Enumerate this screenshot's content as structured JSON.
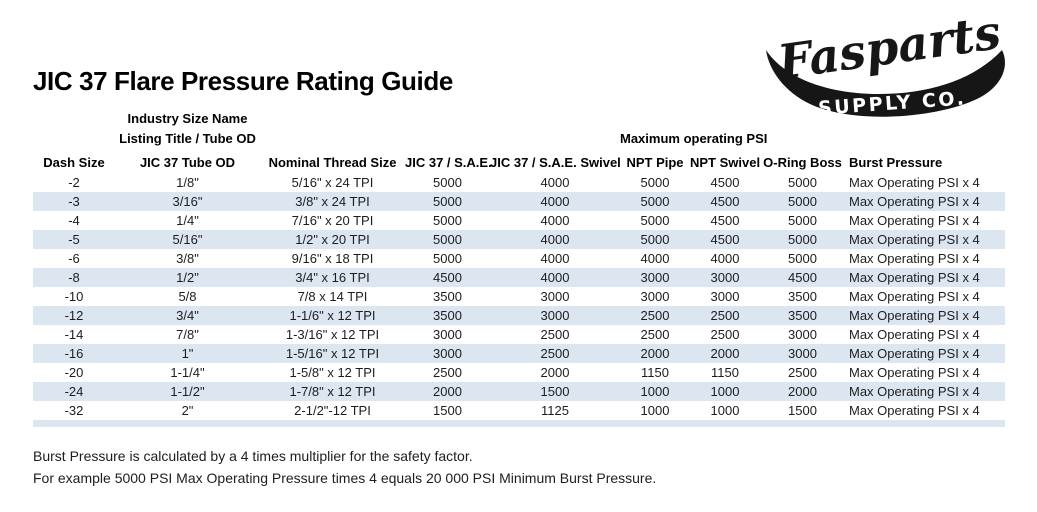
{
  "page": {
    "title": "JIC 37 Flare Pressure Rating Guide"
  },
  "logo": {
    "brand": "Fasparts",
    "subtitle": "SUPPLY CO.",
    "color": "#161616"
  },
  "table": {
    "group_headers": {
      "industry_size_name": "Industry Size Name",
      "listing_title": "Listing Title / Tube OD",
      "max_operating_psi": "Maximum operating PSI"
    },
    "columns": [
      "Dash Size",
      "JIC 37 Tube OD",
      "Nominal Thread Size",
      "JIC 37 / S.A.E.",
      "JIC 37 / S.A.E. Swivel",
      "NPT Pipe",
      "NPT Swivel",
      "O-Ring Boss",
      "Burst Pressure"
    ],
    "rows": [
      [
        "-2",
        "1/8\"",
        "5/16\" x 24 TPI",
        "5000",
        "4000",
        "5000",
        "4500",
        "5000",
        "Max Operating PSI x 4"
      ],
      [
        "-3",
        "3/16\"",
        "3/8\" x 24 TPI",
        "5000",
        "4000",
        "5000",
        "4500",
        "5000",
        "Max Operating PSI x 4"
      ],
      [
        "-4",
        "1/4\"",
        "7/16\" x 20 TPI",
        "5000",
        "4000",
        "5000",
        "4500",
        "5000",
        "Max Operating PSI x 4"
      ],
      [
        "-5",
        "5/16\"",
        "1/2\" x 20 TPI",
        "5000",
        "4000",
        "5000",
        "4500",
        "5000",
        "Max Operating PSI x 4"
      ],
      [
        "-6",
        "3/8\"",
        "9/16\" x 18 TPI",
        "5000",
        "4000",
        "4000",
        "4000",
        "5000",
        "Max Operating PSI x 4"
      ],
      [
        "-8",
        "1/2\"",
        "3/4\" x 16 TPI",
        "4500",
        "4000",
        "3000",
        "3000",
        "4500",
        "Max Operating PSI x 4"
      ],
      [
        "-10",
        "5/8",
        "7/8 x 14 TPI",
        "3500",
        "3000",
        "3000",
        "3000",
        "3500",
        "Max Operating PSI x 4"
      ],
      [
        "-12",
        "3/4\"",
        "1-1/6\" x 12 TPI",
        "3500",
        "3000",
        "2500",
        "2500",
        "3500",
        "Max Operating PSI x 4"
      ],
      [
        "-14",
        "7/8\"",
        "1-3/16\" x 12 TPI",
        "3000",
        "2500",
        "2500",
        "2500",
        "3000",
        "Max Operating PSI x 4"
      ],
      [
        "-16",
        "1\"",
        "1-5/16\" x 12 TPI",
        "3000",
        "2500",
        "2000",
        "2000",
        "3000",
        "Max Operating PSI x 4"
      ],
      [
        "-20",
        "1-1/4\"",
        "1-5/8\" x 12 TPI",
        "2500",
        "2000",
        "1150",
        "1150",
        "2500",
        "Max Operating PSI x 4"
      ],
      [
        "-24",
        "1-1/2\"",
        "1-7/8\" x 12 TPI",
        "2000",
        "1500",
        "1000",
        "1000",
        "2000",
        "Max Operating PSI x 4"
      ],
      [
        "-32",
        "2\"",
        "2-1/2\"-12 TPI",
        "1500",
        "1125",
        "1000",
        "1000",
        "1500",
        "Max Operating PSI x 4"
      ]
    ],
    "banded_row_color": "#dce6f1"
  },
  "footer": {
    "line1": "Burst Pressure is calculated by a 4 times multiplier for the safety factor.",
    "line2": "For example 5000 PSI Max Operating Pressure times 4 equals 20 000 PSI Minimum Burst Pressure."
  }
}
